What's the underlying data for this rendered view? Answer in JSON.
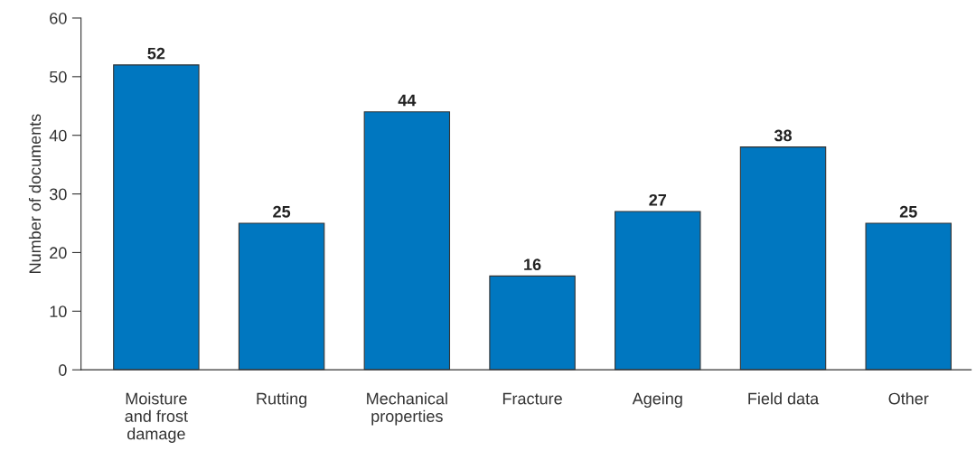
{
  "chart_data": {
    "type": "bar",
    "ylabel": "Number of documents",
    "categories": [
      "Moisture\nand frost\ndamage",
      "Rutting",
      "Mechanical\nproperties",
      "Fracture",
      "Ageing",
      "Field data",
      "Other"
    ],
    "values": [
      52,
      25,
      44,
      16,
      27,
      38,
      25
    ],
    "color": "#0077c0",
    "ylim": [
      0,
      60
    ],
    "yticks": [
      0,
      10,
      20,
      30,
      40,
      50,
      60
    ],
    "data_labels": true,
    "grid": false,
    "legend": false
  }
}
